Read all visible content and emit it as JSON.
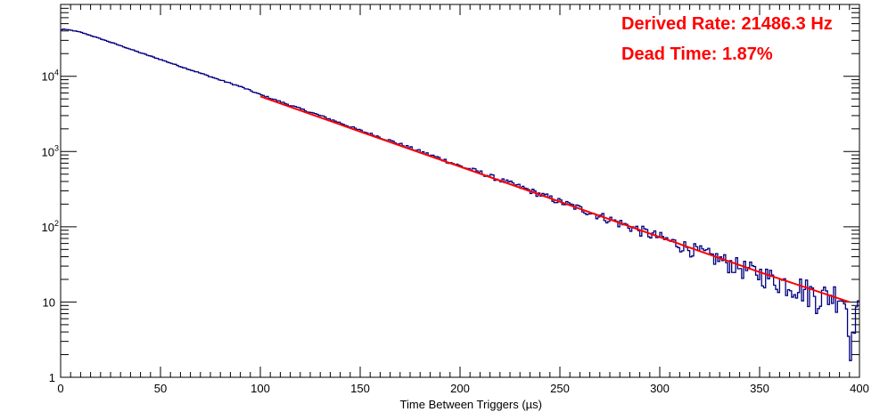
{
  "chart_data": {
    "type": "line",
    "subtype": "step-histogram-with-exponential-fit",
    "xlabel": "Time Between Triggers (µs)",
    "ylabel": "",
    "xlim": [
      0,
      400
    ],
    "ylim": [
      1,
      90000
    ],
    "yscale": "log",
    "grid": false,
    "x_ticks": [
      "0",
      "50",
      "100",
      "150",
      "200",
      "250",
      "300",
      "350",
      "400"
    ],
    "y_ticks": [
      {
        "base": "1",
        "exp": ""
      },
      {
        "base": "10",
        "exp": ""
      },
      {
        "base": "10",
        "exp": "2"
      },
      {
        "base": "10",
        "exp": "3"
      },
      {
        "base": "10",
        "exp": "4"
      }
    ],
    "series": [
      {
        "role": "histogram",
        "color": "#000080",
        "x": [
          0,
          1,
          2,
          3,
          5,
          8,
          10,
          20,
          30,
          40,
          50,
          60,
          70,
          80,
          90,
          100,
          110,
          120,
          130,
          140,
          150,
          160,
          170,
          180,
          190,
          200,
          210,
          220,
          230,
          240,
          250,
          260,
          270,
          280,
          290,
          300,
          310,
          320,
          330,
          340,
          350,
          360,
          370,
          380,
          390,
          392,
          394,
          396,
          398,
          400
        ],
        "values": [
          40000,
          43000,
          42000,
          41500,
          41000,
          39500,
          38500,
          31500,
          25500,
          20500,
          16700,
          13500,
          11000,
          8900,
          7300,
          5700,
          4600,
          3700,
          3000,
          2400,
          1900,
          1550,
          1250,
          1000,
          810,
          640,
          530,
          420,
          340,
          270,
          215,
          175,
          140,
          112,
          90,
          72,
          58,
          46,
          37,
          29,
          24,
          19,
          16,
          12,
          13,
          11,
          8,
          2,
          9,
          7
        ]
      },
      {
        "role": "fit",
        "color": "#ff0000",
        "x": [
          100,
          150,
          200,
          250,
          300,
          350,
          395
        ],
        "values": [
          5400,
          1840,
          630,
          215,
          73,
          25,
          10
        ]
      }
    ],
    "annotations": [
      {
        "text": "Derived Rate: 21486.3 Hz",
        "color": "#ff0000",
        "position": "top-right"
      },
      {
        "text": "Dead Time: 1.87%",
        "color": "#ff0000",
        "position": "top-right"
      }
    ]
  }
}
